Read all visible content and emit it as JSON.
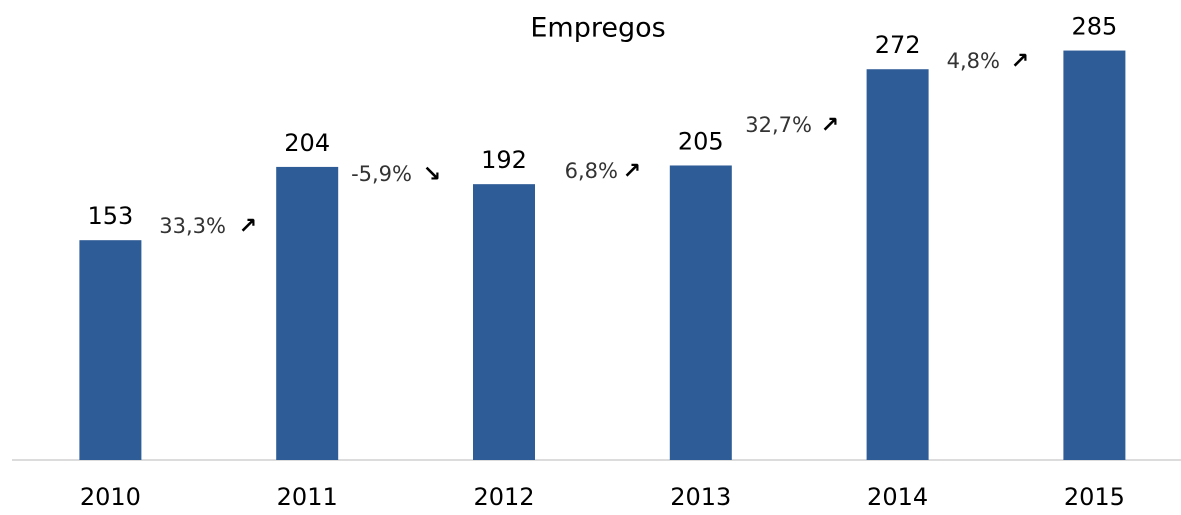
{
  "chart_data": {
    "type": "bar",
    "title": "Empregos",
    "categories": [
      "2010",
      "2011",
      "2012",
      "2013",
      "2014",
      "2015"
    ],
    "values": [
      153,
      204,
      192,
      205,
      272,
      285
    ],
    "color": "#2e5c96",
    "ylim": [
      0,
      300
    ],
    "annotations": [
      {
        "text": "33,3%",
        "arrow": "↗"
      },
      {
        "text": "-5,9%",
        "arrow": "↘"
      },
      {
        "text": "6,8%",
        "arrow": "↗"
      },
      {
        "text": "32,7%",
        "arrow": "↗"
      },
      {
        "text": "4,8%",
        "arrow": "↗"
      }
    ]
  }
}
